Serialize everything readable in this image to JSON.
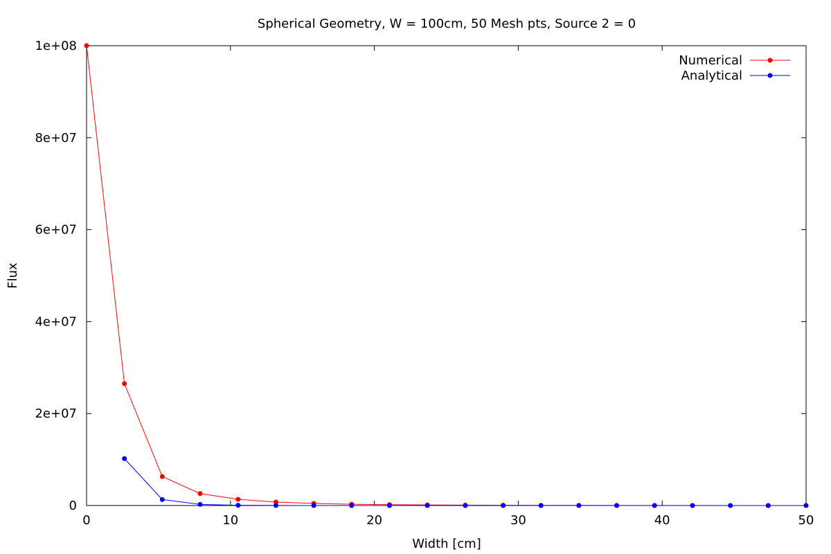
{
  "chart_data": {
    "type": "line",
    "title": "Spherical Geometry, W = 100cm, 50 Mesh pts, Source 2 = 0",
    "xlabel": "Width [cm]",
    "ylabel": "Flux",
    "xlim": [
      0,
      50
    ],
    "ylim": [
      0,
      100000000
    ],
    "x_ticks": [
      0,
      10,
      20,
      30,
      40,
      50
    ],
    "x_tick_labels": [
      "0",
      "10",
      "20",
      "30",
      "40",
      "50"
    ],
    "y_ticks": [
      0,
      20000000,
      40000000,
      60000000,
      80000000,
      100000000
    ],
    "y_tick_labels": [
      "0",
      "2e+07",
      "4e+07",
      "6e+07",
      "8e+07",
      "1e+08"
    ],
    "grid": false,
    "legend_position": "top-right",
    "series": [
      {
        "name": "Numerical",
        "color": "#ff0000",
        "marker": "circle",
        "points": [
          [
            0.0,
            100000000
          ],
          [
            2.63,
            26500000
          ],
          [
            5.26,
            6300000
          ],
          [
            7.89,
            2600000
          ],
          [
            10.53,
            1350000
          ],
          [
            13.16,
            750000
          ],
          [
            15.79,
            450000
          ],
          [
            18.42,
            290000
          ],
          [
            21.05,
            190000
          ],
          [
            23.68,
            130000
          ],
          [
            26.32,
            90000
          ],
          [
            28.95,
            60000
          ],
          [
            31.58,
            40000
          ],
          [
            34.21,
            30000
          ],
          [
            36.84,
            20000
          ],
          [
            39.47,
            15000
          ],
          [
            42.11,
            10000
          ],
          [
            44.74,
            7000
          ],
          [
            47.37,
            5000
          ],
          [
            50.0,
            0
          ]
        ]
      },
      {
        "name": "Analytical",
        "color": "#0000ff",
        "marker": "circle",
        "points": [
          [
            2.63,
            10200000
          ],
          [
            5.26,
            1300000
          ],
          [
            7.89,
            250000
          ],
          [
            10.53,
            60000
          ],
          [
            13.16,
            15000
          ],
          [
            15.79,
            4000
          ],
          [
            18.42,
            1000
          ],
          [
            21.05,
            300
          ],
          [
            23.68,
            80
          ],
          [
            26.32,
            20
          ],
          [
            28.95,
            5
          ],
          [
            31.58,
            1
          ],
          [
            34.21,
            0
          ],
          [
            36.84,
            0
          ],
          [
            39.47,
            0
          ],
          [
            42.11,
            0
          ],
          [
            44.74,
            0
          ],
          [
            47.37,
            0
          ],
          [
            50.0,
            0
          ]
        ]
      }
    ]
  }
}
